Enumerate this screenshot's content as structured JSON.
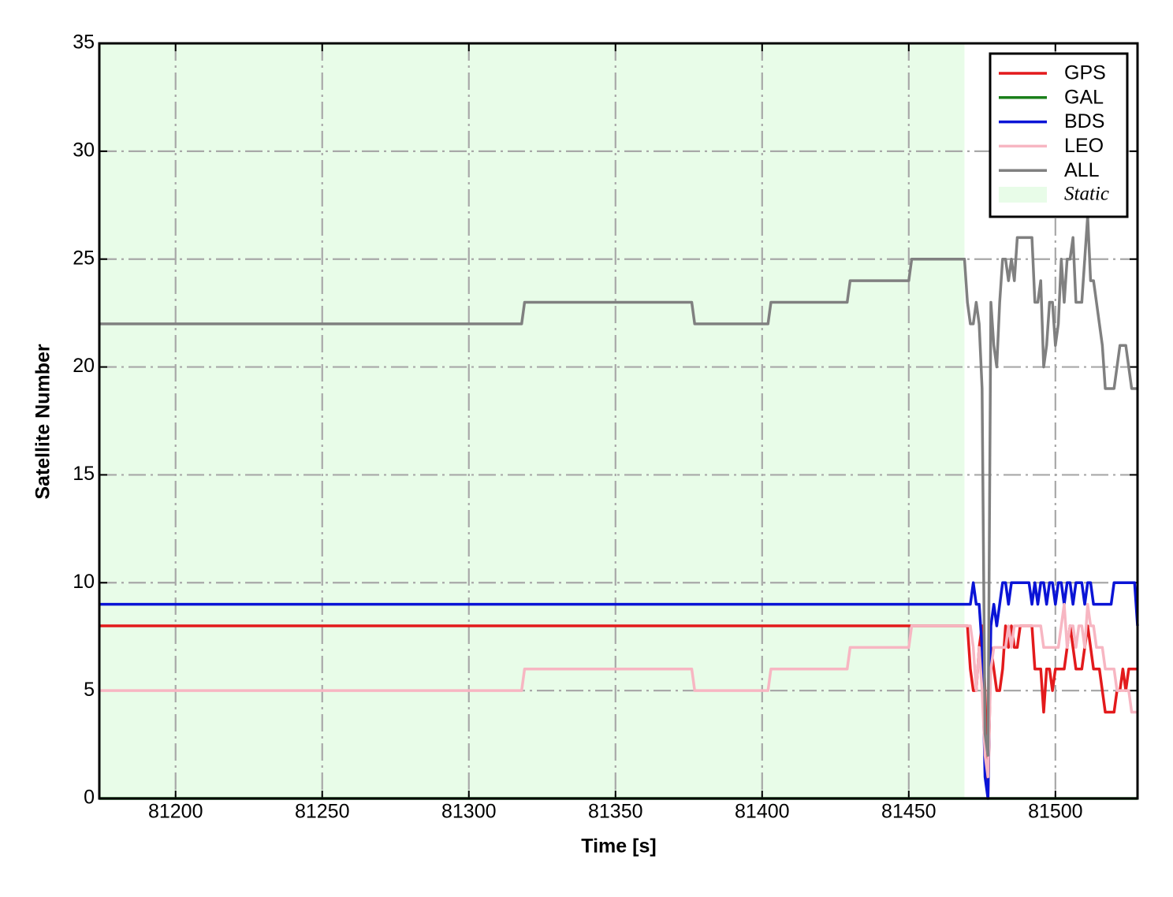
{
  "chart_data": {
    "type": "line",
    "xlabel": "Time [s]",
    "ylabel": "Satellite Number",
    "x": [
      81174,
      81318,
      81319,
      81376,
      81377,
      81402,
      81403,
      81429,
      81430,
      81450,
      81451,
      81469,
      81470,
      81471,
      81472,
      81473,
      81474,
      81475,
      81476,
      81477,
      81478,
      81479,
      81480,
      81481,
      81482,
      81483,
      81484,
      81485,
      81486,
      81487,
      81488,
      81489,
      81490,
      81491,
      81492,
      81493,
      81494,
      81495,
      81496,
      81497,
      81498,
      81499,
      81500,
      81501,
      81502,
      81503,
      81504,
      81505,
      81506,
      81507,
      81508,
      81509,
      81510,
      81511,
      81512,
      81513,
      81514,
      81515,
      81516,
      81517,
      81518,
      81519,
      81520,
      81521,
      81522,
      81523,
      81524,
      81525,
      81526,
      81527,
      81528
    ],
    "series": [
      {
        "name": "GPS",
        "color": "#e31a1c",
        "values": [
          8,
          8,
          8,
          8,
          8,
          8,
          8,
          8,
          8,
          8,
          8,
          8,
          8,
          6,
          5,
          5,
          7,
          8,
          5,
          0,
          7,
          6,
          5,
          5,
          6,
          8,
          7,
          8,
          7,
          7,
          8,
          8,
          8,
          8,
          8,
          6,
          6,
          6,
          4,
          6,
          6,
          5,
          6,
          6,
          6,
          6,
          7,
          8,
          7,
          6,
          6,
          6,
          7,
          8,
          7,
          6,
          6,
          6,
          5,
          4,
          4,
          4,
          4,
          5,
          5,
          6,
          5,
          6,
          6,
          6,
          6
        ]
      },
      {
        "name": "GAL",
        "color": "#1a7f1a",
        "values": [
          0,
          0,
          0,
          0,
          0,
          0,
          0,
          0,
          0,
          0,
          0,
          0,
          0,
          0,
          0,
          0,
          0,
          0,
          0,
          0,
          0,
          0,
          0,
          0,
          0,
          0,
          0,
          0,
          0,
          0,
          0,
          0,
          0,
          0,
          0,
          0,
          0,
          0,
          0,
          0,
          0,
          0,
          0,
          0,
          0,
          0,
          0,
          0,
          0,
          0,
          0,
          0,
          0,
          0,
          0,
          0,
          0,
          0,
          0,
          0,
          0,
          0,
          0,
          0,
          0,
          0,
          0,
          0,
          0,
          0,
          0
        ]
      },
      {
        "name": "BDS",
        "color": "#0a14d6",
        "values": [
          9,
          9,
          9,
          9,
          9,
          9,
          9,
          9,
          9,
          9,
          9,
          9,
          9,
          9,
          10,
          9,
          9,
          7,
          1,
          0,
          8,
          9,
          8,
          9,
          10,
          10,
          9,
          10,
          10,
          10,
          10,
          10,
          10,
          10,
          9,
          10,
          9,
          10,
          10,
          9,
          10,
          10,
          9,
          10,
          10,
          9,
          10,
          10,
          9,
          10,
          10,
          10,
          9,
          10,
          10,
          9,
          9,
          9,
          9,
          9,
          9,
          9,
          10,
          10,
          10,
          10,
          10,
          10,
          10,
          10,
          8
        ]
      },
      {
        "name": "LEO",
        "color": "#f7b6c2",
        "values": [
          5,
          5,
          6,
          6,
          5,
          5,
          6,
          6,
          7,
          7,
          8,
          8,
          8,
          8,
          7,
          5,
          7,
          5,
          2,
          1,
          6,
          7,
          7,
          7,
          7,
          7,
          8,
          7,
          8,
          8,
          8,
          8,
          8,
          8,
          8,
          8,
          8,
          8,
          7,
          7,
          7,
          7,
          7,
          7,
          8,
          9,
          7,
          8,
          8,
          7,
          8,
          8,
          7,
          9,
          8,
          8,
          7,
          7,
          7,
          6,
          6,
          6,
          6,
          5,
          5,
          5,
          5,
          5,
          4,
          4,
          4
        ]
      },
      {
        "name": "ALL",
        "color": "#808080",
        "values": [
          22,
          22,
          23,
          23,
          22,
          22,
          23,
          23,
          24,
          24,
          25,
          25,
          23,
          22,
          22,
          23,
          22,
          19,
          3,
          2,
          23,
          21,
          20,
          23,
          25,
          25,
          24,
          25,
          24,
          26,
          26,
          26,
          26,
          26,
          26,
          23,
          23,
          24,
          20,
          21,
          23,
          23,
          21,
          22,
          25,
          23,
          25,
          25,
          26,
          23,
          23,
          23,
          25,
          27,
          24,
          24,
          23,
          22,
          21,
          19,
          19,
          19,
          19,
          20,
          21,
          21,
          21,
          20,
          19,
          19,
          19
        ]
      }
    ],
    "span": {
      "name": "Static",
      "color": "#e8fce8",
      "range": [
        81174,
        81469
      ]
    },
    "xlim": [
      81174,
      81528
    ],
    "xticks": [
      81200,
      81250,
      81300,
      81350,
      81400,
      81450,
      81500
    ],
    "ylim": [
      0,
      35
    ],
    "yticks": [
      0,
      5,
      10,
      15,
      20,
      25,
      30,
      35
    ],
    "grid": true,
    "legend": "upper right"
  }
}
